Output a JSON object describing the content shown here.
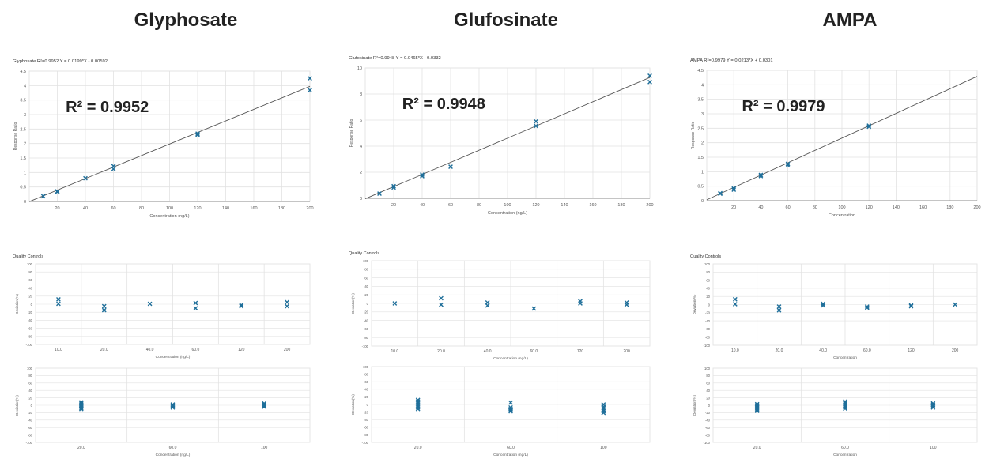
{
  "columns": [
    {
      "heading": "Glyphosate",
      "calibration": {
        "type": "scatter",
        "title": "Glyphosate   R²=0.9952   Y = 0.0199*X - 0.00592",
        "annotation": "R² = 0.9952",
        "xlabel": "Concentration (ng/L)",
        "ylabel": "Response Ratio",
        "xlim": [
          0,
          200
        ],
        "ylim": [
          0,
          4.5
        ],
        "xticks": [
          20,
          40,
          60,
          80,
          100,
          120,
          140,
          160,
          180,
          200
        ],
        "yticks": [
          0,
          0.5,
          1,
          1.5,
          2,
          2.5,
          3,
          3.5,
          4,
          4.5
        ],
        "fit": {
          "slope": 0.0199,
          "intercept": -0.00592
        },
        "points": [
          [
            10,
            0.18
          ],
          [
            20,
            0.33
          ],
          [
            20,
            0.35
          ],
          [
            40,
            0.8
          ],
          [
            60,
            1.12
          ],
          [
            60,
            1.22
          ],
          [
            120,
            2.3
          ],
          [
            120,
            2.34
          ],
          [
            200,
            4.25
          ],
          [
            200,
            3.84
          ]
        ],
        "grid": true
      },
      "qc": {
        "type": "scatter",
        "title": "Quality Controls",
        "xlabel": "Concentration (ng/L)",
        "ylabel": "Deviation(%)",
        "ylim": [
          -100,
          100
        ],
        "yticks": [
          -100,
          -80,
          -60,
          -40,
          -20,
          0,
          20,
          40,
          60,
          80,
          100
        ],
        "categories": [
          "10.0",
          "20.0",
          "40.0",
          "60.0",
          "120",
          "200"
        ],
        "points": [
          [
            0,
            12
          ],
          [
            0,
            1
          ],
          [
            1,
            -5
          ],
          [
            1,
            -15
          ],
          [
            2,
            1
          ],
          [
            3,
            3
          ],
          [
            3,
            -10
          ],
          [
            4,
            -2
          ],
          [
            4,
            -5
          ],
          [
            5,
            5
          ],
          [
            5,
            -5
          ]
        ],
        "grid": true
      },
      "repeat": {
        "type": "scatter",
        "xlabel": "Concentration (ng/L)",
        "ylabel": "Deviation(%)",
        "ylim": [
          -100,
          100
        ],
        "yticks": [
          -100,
          -80,
          -60,
          -40,
          -20,
          0,
          20,
          40,
          60,
          80,
          100
        ],
        "categories": [
          "20.0",
          "60.0",
          "100"
        ],
        "points": [
          [
            0,
            8
          ],
          [
            0,
            5
          ],
          [
            0,
            2
          ],
          [
            0,
            -1
          ],
          [
            0,
            -4
          ],
          [
            0,
            -7
          ],
          [
            0,
            -10
          ],
          [
            1,
            2
          ],
          [
            1,
            -1
          ],
          [
            1,
            -3
          ],
          [
            1,
            -6
          ],
          [
            1,
            0
          ],
          [
            2,
            3
          ],
          [
            2,
            0
          ],
          [
            2,
            -2
          ],
          [
            2,
            -4
          ],
          [
            2,
            5
          ]
        ],
        "grid": true
      }
    },
    {
      "heading": "Glufosinate",
      "calibration": {
        "type": "scatter",
        "title": "Glufosinate   R²=0.9948   Y = 0.0465*X - 0.0332",
        "annotation": "R² = 0.9948",
        "xlabel": "Concentration (ng/L)",
        "ylabel": "Response Ratio",
        "xlim": [
          0,
          200
        ],
        "ylim": [
          0,
          10
        ],
        "xticks": [
          20,
          40,
          60,
          80,
          100,
          120,
          140,
          160,
          180,
          200
        ],
        "yticks": [
          0,
          2,
          4,
          6,
          8,
          10
        ],
        "fit": {
          "slope": 0.0465,
          "intercept": -0.0332
        },
        "points": [
          [
            10,
            0.36
          ],
          [
            20,
            0.83
          ],
          [
            20,
            0.93
          ],
          [
            40,
            1.7
          ],
          [
            40,
            1.82
          ],
          [
            60,
            2.42
          ],
          [
            120,
            5.55
          ],
          [
            120,
            5.9
          ],
          [
            200,
            9.4
          ],
          [
            200,
            8.92
          ]
        ],
        "grid": true
      },
      "qc": {
        "type": "scatter",
        "title": "Quality Controls",
        "xlabel": "Concentration (ng/L)",
        "ylabel": "Deviation(%)",
        "ylim": [
          -100,
          100
        ],
        "yticks": [
          -100,
          -80,
          -60,
          -40,
          -20,
          0,
          20,
          40,
          60,
          80,
          100
        ],
        "categories": [
          "10.0",
          "20.0",
          "40.0",
          "60.0",
          "120",
          "200"
        ],
        "points": [
          [
            0,
            0
          ],
          [
            1,
            12
          ],
          [
            1,
            -3
          ],
          [
            2,
            2
          ],
          [
            2,
            -5
          ],
          [
            3,
            -12
          ],
          [
            4,
            5
          ],
          [
            4,
            0
          ],
          [
            5,
            2
          ],
          [
            5,
            -3
          ]
        ],
        "grid": true
      },
      "repeat": {
        "type": "scatter",
        "xlabel": "Concentration (ng/L)",
        "ylabel": "Deviation(%)",
        "ylim": [
          -100,
          100
        ],
        "yticks": [
          -100,
          -80,
          -60,
          -40,
          -20,
          0,
          20,
          40,
          60,
          80,
          100
        ],
        "categories": [
          "20.0",
          "60.0",
          "100"
        ],
        "points": [
          [
            0,
            12
          ],
          [
            0,
            8
          ],
          [
            0,
            4
          ],
          [
            0,
            0
          ],
          [
            0,
            -4
          ],
          [
            0,
            -8
          ],
          [
            0,
            -12
          ],
          [
            1,
            5
          ],
          [
            1,
            -8
          ],
          [
            1,
            -12
          ],
          [
            1,
            -15
          ],
          [
            1,
            -18
          ],
          [
            2,
            0
          ],
          [
            2,
            -6
          ],
          [
            2,
            -10
          ],
          [
            2,
            -14
          ],
          [
            2,
            -18
          ],
          [
            2,
            -22
          ]
        ],
        "grid": true
      }
    },
    {
      "heading": "AMPA",
      "calibration": {
        "type": "scatter",
        "title": "AMPA  R²=0.9979   Y = 0.0213*X + 0.0301",
        "annotation": "R² = 0.9979",
        "xlabel": "Concentration",
        "ylabel": "Response Ratio",
        "xlim": [
          0,
          200
        ],
        "ylim": [
          0,
          4.5
        ],
        "xticks": [
          20,
          40,
          60,
          80,
          100,
          120,
          140,
          160,
          180,
          200
        ],
        "yticks": [
          0,
          0.5,
          1,
          1.5,
          2,
          2.5,
          3,
          3.5,
          4,
          4.5
        ],
        "fit": {
          "slope": 0.0213,
          "intercept": 0.0301
        },
        "points": [
          [
            10,
            0.24
          ],
          [
            10,
            0.26
          ],
          [
            20,
            0.38
          ],
          [
            20,
            0.42
          ],
          [
            40,
            0.85
          ],
          [
            40,
            0.89
          ],
          [
            60,
            1.22
          ],
          [
            60,
            1.27
          ],
          [
            120,
            2.55
          ],
          [
            120,
            2.59
          ]
        ],
        "grid": true
      },
      "qc": {
        "type": "scatter",
        "title": "Quality Controls",
        "xlabel": "Concentration",
        "ylabel": "Deviation(%)",
        "ylim": [
          -100,
          100
        ],
        "yticks": [
          -100,
          -80,
          -60,
          -40,
          -20,
          0,
          20,
          40,
          60,
          80,
          100
        ],
        "categories": [
          "10.0",
          "20.0",
          "40.0",
          "60.0",
          "120",
          "200"
        ],
        "points": [
          [
            0,
            13
          ],
          [
            0,
            1
          ],
          [
            1,
            -5
          ],
          [
            1,
            -14
          ],
          [
            2,
            2
          ],
          [
            2,
            -2
          ],
          [
            3,
            -5
          ],
          [
            3,
            -8
          ],
          [
            4,
            -2
          ],
          [
            4,
            -4
          ],
          [
            5,
            0
          ]
        ],
        "grid": true
      },
      "repeat": {
        "type": "scatter",
        "xlabel": "Concentration",
        "ylabel": "Deviation(%)",
        "ylim": [
          -100,
          100
        ],
        "yticks": [
          -100,
          -80,
          -60,
          -40,
          -20,
          0,
          20,
          40,
          60,
          80,
          100
        ],
        "categories": [
          "20.0",
          "60.0",
          "100"
        ],
        "points": [
          [
            0,
            3
          ],
          [
            0,
            0
          ],
          [
            0,
            -3
          ],
          [
            0,
            -6
          ],
          [
            0,
            -9
          ],
          [
            0,
            -12
          ],
          [
            0,
            -15
          ],
          [
            1,
            10
          ],
          [
            1,
            6
          ],
          [
            1,
            2
          ],
          [
            1,
            -2
          ],
          [
            1,
            -5
          ],
          [
            1,
            -9
          ],
          [
            2,
            5
          ],
          [
            2,
            2
          ],
          [
            2,
            0
          ],
          [
            2,
            -3
          ],
          [
            2,
            -6
          ]
        ],
        "grid": true
      }
    }
  ],
  "colors": {
    "marker": "#1f6f9a",
    "fit_line": "#555555",
    "grid": "#e2e2e2",
    "axis": "#888888",
    "heading": "#222222"
  }
}
